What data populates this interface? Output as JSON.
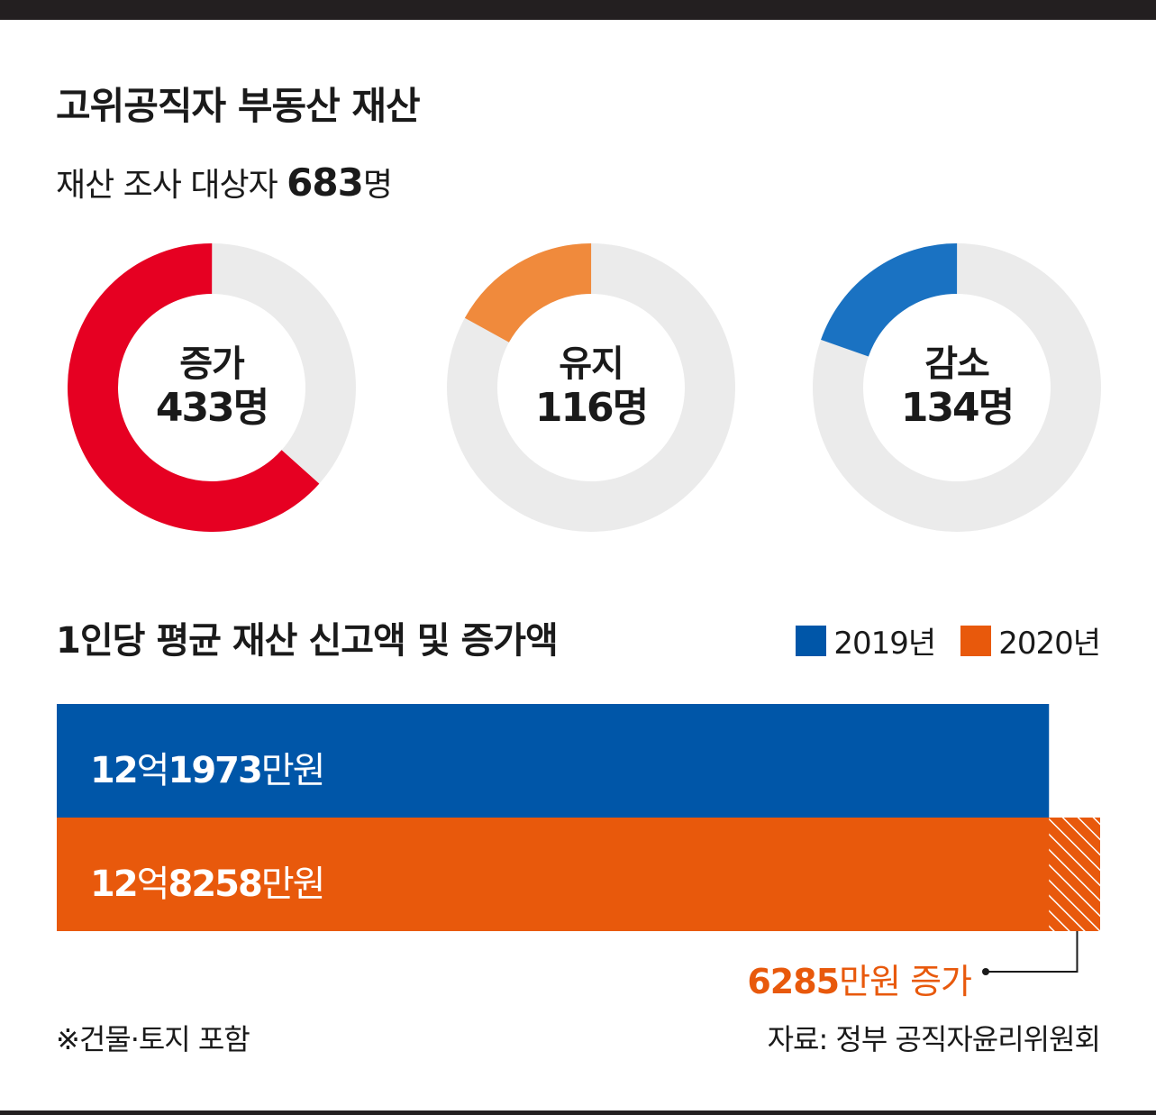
{
  "title": "고위공직자 부동산 재산",
  "subtitle": {
    "prefix": "재산 조사 대상자 ",
    "count": "683",
    "unit": "명"
  },
  "section_title": "1인당 평균 재산 신고액 및 증가액",
  "legend": [
    "2019년",
    "2020년"
  ],
  "note": "※건물·토지 포함",
  "source": "자료: 정부 공직자윤리위원회",
  "colors": {
    "increase": "#e60022",
    "maintain": "#f08a3c",
    "decrease": "#1a72c2",
    "track": "#ebebeb",
    "bar2019": "#0056a8",
    "bar2020": "#e8590c"
  },
  "donuts": [
    {
      "key": "increase",
      "label": "증가",
      "count": "433",
      "unit": "명",
      "value": 433
    },
    {
      "key": "maintain",
      "label": "유지",
      "count": "116",
      "unit": "명",
      "value": 116
    },
    {
      "key": "decrease",
      "label": "감소",
      "count": "134",
      "unit": "명",
      "value": 134
    }
  ],
  "bars": [
    {
      "year": "2019년",
      "a": "12",
      "b": "억",
      "c": "1973",
      "d": "만원",
      "value": 121973
    },
    {
      "year": "2020년",
      "a": "12",
      "b": "억",
      "c": "8258",
      "d": "만원",
      "value": 128258
    }
  ],
  "increase": {
    "num": "6285",
    "text": "만원 증가",
    "value": 6285
  },
  "chart_data": [
    {
      "type": "pie",
      "title": "재산 조사 대상자 683명",
      "categories": [
        "증가",
        "유지",
        "감소"
      ],
      "values": [
        433,
        116,
        134
      ],
      "total": 683
    },
    {
      "type": "bar",
      "title": "1인당 평균 재산 신고액 및 증가액",
      "categories": [
        "2019년",
        "2020년"
      ],
      "values": [
        121973,
        128258
      ],
      "unit": "만원",
      "difference": 6285
    }
  ]
}
